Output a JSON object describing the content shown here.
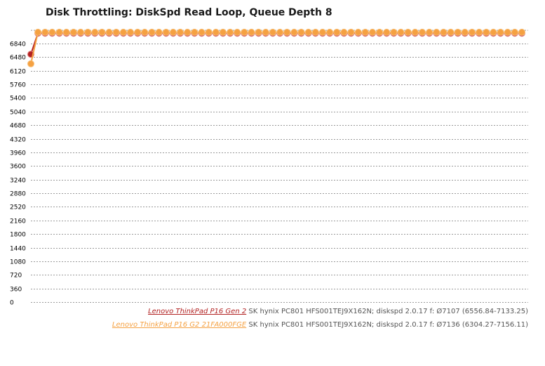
{
  "chart_data": {
    "type": "line",
    "title": "Disk Throttling: DiskSpd Read Loop, Queue Depth 8",
    "xlabel": "",
    "ylabel": "",
    "ylim": [
      0,
      7200
    ],
    "yticks": [
      "0",
      "360",
      "720",
      "1080",
      "1440",
      "1800",
      "2160",
      "2520",
      "2880",
      "3240",
      "3600",
      "3960",
      "4320",
      "4680",
      "5040",
      "5400",
      "5760",
      "6120",
      "6480",
      "6840"
    ],
    "grid": true,
    "legend_position": "bottom-right",
    "points_per_series": 70,
    "series": [
      {
        "name": "Lenovo ThinkPad P16 Gen 2",
        "detail": "SK hynix PC801 HFS001TEJ9X162N; diskspd 2.0.17 f: Ø7107 (6556.84-7133.25)",
        "color": "#b22222",
        "first_value": 6556.84,
        "steady_value": 7115
      },
      {
        "name": "Lenovo ThinkPad P16 G2 21FA000FGE",
        "detail": "SK hynix PC801 HFS001TEJ9X162N; diskspd 2.0.17 f: Ø7136 (6304.27-7156.11)",
        "color": "#f5a142",
        "first_value": 6304.27,
        "steady_value": 7140
      }
    ]
  }
}
